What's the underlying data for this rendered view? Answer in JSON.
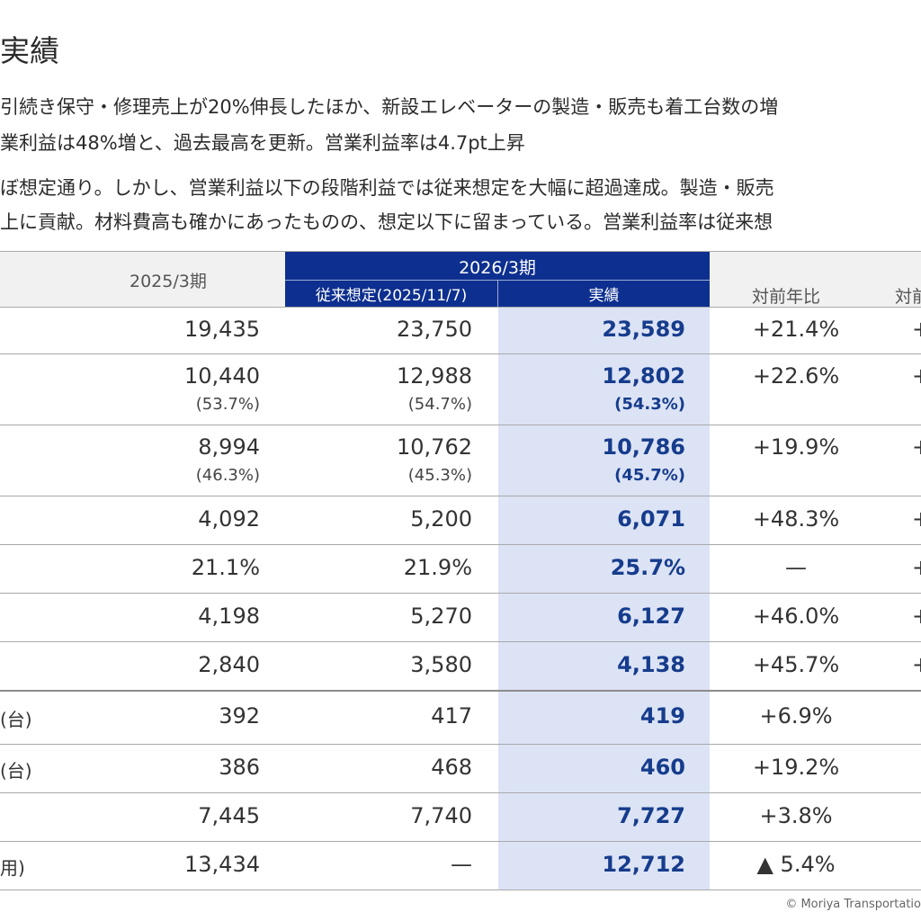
{
  "title": "実績",
  "lines": [
    "引続き保守・修理売上が20%伸長したほか、新設エレベーターの製造・販売も着工台数の増",
    "業利益は48%増と、過去最高を更新。営業利益率は4.7pt上昇",
    "ぼ想定通り。しかし、営業利益以下の段階利益では従来想定を大幅に超過達成。製造・販売",
    "上に貢献。材料費高も確かにあったものの、想定以下に留まっている。営業利益率は従来想"
  ],
  "header": {
    "prev_year": "2025/3期",
    "current_year": "2026/3期",
    "forecast": "従来想定(2025/11/7)",
    "actual": "実績",
    "yoy": "対前年比",
    "vs_forecast": "対前"
  },
  "rows": [
    {
      "label": "",
      "prev": "19,435",
      "prev_sub": "",
      "fc": "23,750",
      "fc_sub": "",
      "act": "23,589",
      "act_sub": "",
      "yoy": "+21.4%",
      "vs": "+"
    },
    {
      "label": "",
      "prev": "10,440",
      "prev_sub": "(53.7%)",
      "fc": "12,988",
      "fc_sub": "(54.7%)",
      "act": "12,802",
      "act_sub": "(54.3%)",
      "yoy": "+22.6%",
      "vs": "+"
    },
    {
      "label": "",
      "prev": "8,994",
      "prev_sub": "(46.3%)",
      "fc": "10,762",
      "fc_sub": "(45.3%)",
      "act": "10,786",
      "act_sub": "(45.7%)",
      "yoy": "+19.9%",
      "vs": "+"
    },
    {
      "label": "",
      "prev": "4,092",
      "prev_sub": "",
      "fc": "5,200",
      "fc_sub": "",
      "act": "6,071",
      "act_sub": "",
      "yoy": "+48.3%",
      "vs": "+"
    },
    {
      "label": "",
      "prev": "21.1%",
      "prev_sub": "",
      "fc": "21.9%",
      "fc_sub": "",
      "act": "25.7%",
      "act_sub": "",
      "yoy": "—",
      "vs": "+"
    },
    {
      "label": "",
      "prev": "4,198",
      "prev_sub": "",
      "fc": "5,270",
      "fc_sub": "",
      "act": "6,127",
      "act_sub": "",
      "yoy": "+46.0%",
      "vs": "+"
    },
    {
      "label": "",
      "prev": "2,840",
      "prev_sub": "",
      "fc": "3,580",
      "fc_sub": "",
      "act": "4,138",
      "act_sub": "",
      "yoy": "+45.7%",
      "vs": "+"
    },
    {
      "label": "(台)",
      "prev": "392",
      "prev_sub": "",
      "fc": "417",
      "fc_sub": "",
      "act": "419",
      "act_sub": "",
      "yoy": "+6.9%",
      "vs": ""
    },
    {
      "label": "(台)",
      "prev": "386",
      "prev_sub": "",
      "fc": "468",
      "fc_sub": "",
      "act": "460",
      "act_sub": "",
      "yoy": "+19.2%",
      "vs": ""
    },
    {
      "label": "",
      "prev": "7,445",
      "prev_sub": "",
      "fc": "7,740",
      "fc_sub": "",
      "act": "7,727",
      "act_sub": "",
      "yoy": "+3.8%",
      "vs": ""
    },
    {
      "label": "用)",
      "prev": "13,434",
      "prev_sub": "",
      "fc": "—",
      "fc_sub": "",
      "act": "12,712",
      "act_sub": "",
      "yoy": "▲ 5.4%",
      "vs": ""
    }
  ],
  "footer": "© Moriya Transportatio"
}
